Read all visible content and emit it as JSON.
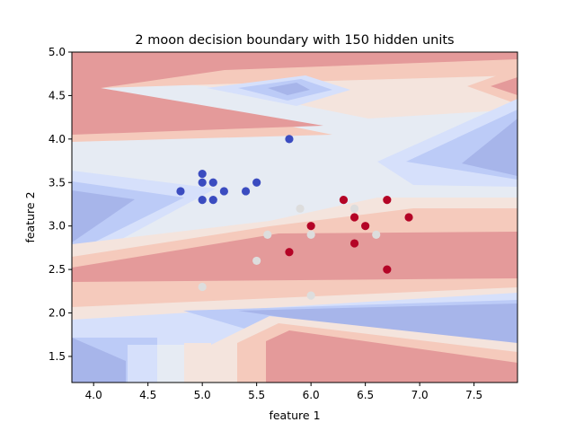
{
  "chart_data": {
    "type": "scatter",
    "title": "2 moon decision boundary with 150 hidden units",
    "xlabel": "feature 1",
    "ylabel": "feature 2",
    "xlim": [
      3.8,
      7.9
    ],
    "ylim": [
      1.2,
      5.0
    ],
    "x_ticks": [
      "4.0",
      "4.5",
      "5.0",
      "5.5",
      "6.0",
      "6.5",
      "7.0",
      "7.5"
    ],
    "y_ticks": [
      "1.5",
      "2.0",
      "2.5",
      "3.0",
      "3.5",
      "4.0",
      "4.5",
      "5.0"
    ],
    "grid": false,
    "colormap": "coolwarm",
    "background": "filled decision-boundary contour (blue = class 0, red = class 1)",
    "series": [
      {
        "color": "#3b4cc0",
        "points": [
          [
            5.8,
            4.0
          ],
          [
            5.0,
            3.6
          ],
          [
            4.8,
            3.4
          ],
          [
            5.0,
            3.5
          ],
          [
            5.1,
            3.5
          ],
          [
            5.2,
            3.4
          ],
          [
            5.4,
            3.4
          ],
          [
            5.5,
            3.5
          ],
          [
            5.0,
            3.3
          ],
          [
            5.1,
            3.3
          ]
        ]
      },
      {
        "color": "#dddddd",
        "points": [
          [
            5.9,
            3.2
          ],
          [
            6.4,
            3.2
          ],
          [
            6.0,
            2.9
          ],
          [
            5.6,
            2.9
          ],
          [
            6.6,
            2.9
          ],
          [
            5.5,
            2.6
          ],
          [
            5.0,
            2.3
          ],
          [
            6.0,
            2.2
          ]
        ]
      },
      {
        "color": "#b40426",
        "points": [
          [
            6.3,
            3.3
          ],
          [
            6.7,
            3.3
          ],
          [
            6.4,
            3.1
          ],
          [
            6.9,
            3.1
          ],
          [
            6.0,
            3.0
          ],
          [
            6.5,
            3.0
          ],
          [
            6.4,
            2.8
          ],
          [
            5.8,
            2.7
          ],
          [
            6.7,
            2.5
          ]
        ]
      }
    ]
  },
  "colors": {
    "deep_blue": "#a7b5ea",
    "mid_blue": "#bccbf7",
    "light_blue": "#d6e0fb",
    "neutral": "#e6ebf3",
    "light_red": "#f4e4dd",
    "mid_red": "#f5cabc",
    "deep_red": "#e49a9a"
  }
}
